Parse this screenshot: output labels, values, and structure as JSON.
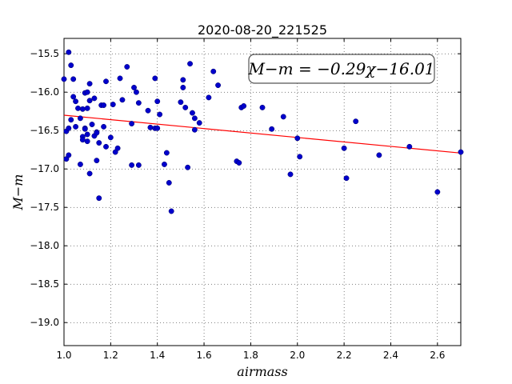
{
  "chart_data": {
    "type": "scatter",
    "title": "2020-08-20_221525",
    "xlabel": "airmass",
    "ylabel": "M−m",
    "xlim": [
      1.0,
      2.7
    ],
    "ylim": [
      -19.3,
      -15.3
    ],
    "y_inverted": true,
    "grid": true,
    "x_ticks": [
      1.0,
      1.2,
      1.4,
      1.6,
      1.8,
      2.0,
      2.2,
      2.4,
      2.6
    ],
    "x_tick_labels": [
      "1.0",
      "1.2",
      "1.4",
      "1.6",
      "1.8",
      "2.0",
      "2.2",
      "2.4",
      "2.6"
    ],
    "y_ticks": [
      -15.5,
      -16.0,
      -16.5,
      -17.0,
      -17.5,
      -18.0,
      -18.5,
      -19.0
    ],
    "y_tick_labels": [
      "−15.5",
      "−16.0",
      "−16.5",
      "−17.0",
      "−17.5",
      "−18.0",
      "−18.5",
      "−19.0"
    ],
    "annotation": "M−m = −0.29χ−16.01",
    "fit": {
      "slope": -0.29,
      "intercept": -16.01,
      "color": "#ff0000"
    },
    "point_color": "#0000cc",
    "series": [
      {
        "x": [
          1.0,
          1.01,
          1.01,
          1.02,
          1.02,
          1.02,
          1.03,
          1.03,
          1.04,
          1.04,
          1.05,
          1.05,
          1.06,
          1.07,
          1.07,
          1.08,
          1.08,
          1.08,
          1.09,
          1.09,
          1.09,
          1.1,
          1.1,
          1.1,
          1.1,
          1.11,
          1.11,
          1.11,
          1.12,
          1.13,
          1.13,
          1.14,
          1.14,
          1.14,
          1.15,
          1.15,
          1.16,
          1.17,
          1.17,
          1.18,
          1.18,
          1.2,
          1.21,
          1.22,
          1.23,
          1.24,
          1.25,
          1.27,
          1.29,
          1.29,
          1.3,
          1.31,
          1.32,
          1.32,
          1.36,
          1.37,
          1.39,
          1.39,
          1.4,
          1.4,
          1.41,
          1.43,
          1.44,
          1.45,
          1.46,
          1.5,
          1.51,
          1.51,
          1.52,
          1.53,
          1.54,
          1.55,
          1.56,
          1.56,
          1.58,
          1.62,
          1.64,
          1.66,
          1.74,
          1.75,
          1.76,
          1.77,
          1.85,
          1.89,
          1.94,
          1.97,
          2.0,
          2.01,
          2.2,
          2.21,
          2.25,
          2.35,
          2.48,
          2.6,
          2.7
        ],
        "y": [
          -15.83,
          -16.87,
          -16.51,
          -15.48,
          -16.82,
          -16.47,
          -15.65,
          -16.36,
          -15.83,
          -16.06,
          -16.45,
          -16.12,
          -16.21,
          -16.94,
          -16.34,
          -16.58,
          -16.62,
          -16.22,
          -16.47,
          -16.48,
          -16.01,
          -16.64,
          -16.55,
          -16.21,
          -16.0,
          -15.89,
          -16.11,
          -17.06,
          -16.42,
          -16.57,
          -16.08,
          -16.52,
          -16.89,
          -16.53,
          -17.38,
          -16.66,
          -16.17,
          -16.45,
          -16.17,
          -15.86,
          -16.71,
          -16.59,
          -16.16,
          -16.78,
          -16.73,
          -15.82,
          -16.1,
          -15.67,
          -16.95,
          -16.41,
          -15.94,
          -16.0,
          -16.14,
          -16.95,
          -16.24,
          -16.46,
          -16.47,
          -15.82,
          -16.12,
          -16.47,
          -16.29,
          -16.94,
          -16.79,
          -17.18,
          -17.55,
          -16.13,
          -15.94,
          -15.84,
          -16.2,
          -16.98,
          -15.63,
          -16.27,
          -16.34,
          -16.49,
          -16.4,
          -16.07,
          -15.73,
          -15.91,
          -16.9,
          -16.92,
          -16.2,
          -16.18,
          -16.2,
          -16.48,
          -16.32,
          -17.07,
          -16.6,
          -16.84,
          -16.73,
          -17.12,
          -16.38,
          -16.82,
          -16.71,
          -17.3,
          -16.78
        ]
      }
    ]
  }
}
